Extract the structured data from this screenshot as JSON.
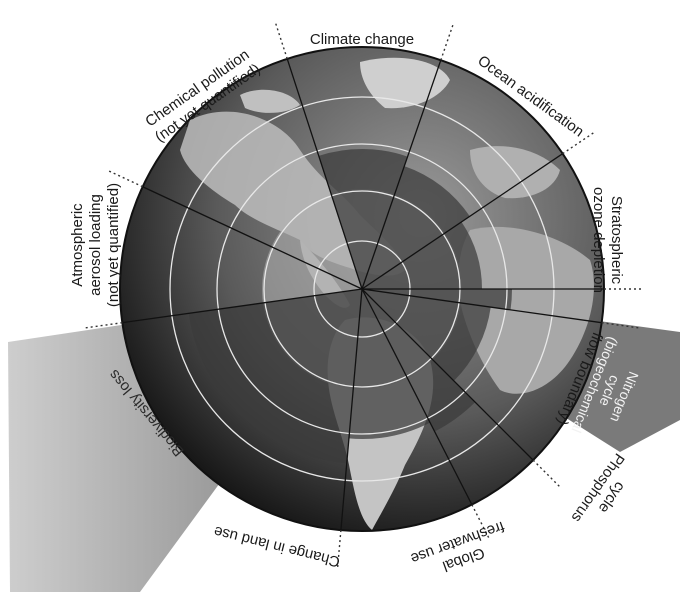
{
  "diagram": {
    "boundaries": [
      {
        "id": "climate",
        "lines": [
          "Climate change"
        ]
      },
      {
        "id": "ocean",
        "lines": [
          "Ocean acidification"
        ]
      },
      {
        "id": "ozone",
        "lines": [
          "Stratospheric",
          "ozone depletion"
        ]
      },
      {
        "id": "nitrogen",
        "lines": [
          "Nitrogen",
          "cycle",
          "(biogeochemical",
          "flow boundary)"
        ]
      },
      {
        "id": "phosphorus",
        "lines": [
          "Phosphorus",
          "cycle"
        ]
      },
      {
        "id": "freshwater",
        "lines": [
          "Global",
          "freshwater use"
        ]
      },
      {
        "id": "landuse",
        "lines": [
          "Change in land use"
        ]
      },
      {
        "id": "biodiversity",
        "lines": [
          "Biodiversity loss"
        ]
      },
      {
        "id": "aerosol",
        "lines": [
          "Atmospheric",
          "aerosol loading",
          "(not yet quantified)"
        ]
      },
      {
        "id": "chemical",
        "lines": [
          "Chemical pollution",
          "(not yet quantified)"
        ]
      }
    ],
    "colors": {
      "safe_zone": "#b0b0b0",
      "wedge": "#3a3a3a",
      "overshoot": "#8a8a8a",
      "ocean": "#6e6e6e",
      "land": "#d6d6d6"
    }
  }
}
